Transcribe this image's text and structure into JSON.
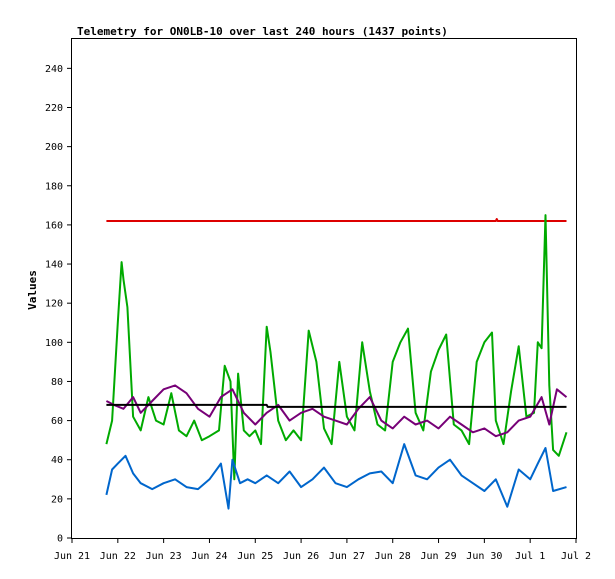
{
  "chart_data": {
    "type": "line",
    "title": "Telemetry for ON0LB-10 over last 240 hours (1437 points)",
    "xlabel": "",
    "ylabel": "Values",
    "ylim": [
      0,
      255
    ],
    "xlim": [
      "2024-06-21T00:00",
      "2024-07-02T00:00"
    ],
    "y_ticks": [
      0,
      20,
      40,
      60,
      80,
      100,
      120,
      140,
      160,
      180,
      200,
      220,
      240
    ],
    "x_tick_labels": [
      "Jun 21",
      "Jun 22",
      "Jun 23",
      "Jun 24",
      "Jun 25",
      "Jun 26",
      "Jun 27",
      "Jun 28",
      "Jun 29",
      "Jun 30",
      "Jul 1",
      "Jul 2"
    ],
    "grid": false,
    "legend": "none",
    "series": [
      {
        "color": "#dd0000",
        "x": [
          "2024-06-21T18:00",
          "2024-06-30T06:00",
          "2024-06-30T06:30",
          "2024-06-30T07:00",
          "2024-07-01T19:00"
        ],
        "y": [
          162,
          162,
          163,
          162,
          162
        ]
      },
      {
        "color": "#00aa00",
        "x": [
          "2024-06-21T18:00",
          "2024-06-21T21:00",
          "2024-06-22T00:00",
          "2024-06-22T02:00",
          "2024-06-22T03:00",
          "2024-06-22T05:00",
          "2024-06-22T08:00",
          "2024-06-22T12:00",
          "2024-06-22T16:00",
          "2024-06-22T20:00",
          "2024-06-23T00:00",
          "2024-06-23T04:00",
          "2024-06-23T08:00",
          "2024-06-23T12:00",
          "2024-06-23T16:00",
          "2024-06-23T20:00",
          "2024-06-24T00:00",
          "2024-06-24T05:00",
          "2024-06-24T08:00",
          "2024-06-24T11:00",
          "2024-06-24T13:00",
          "2024-06-24T15:00",
          "2024-06-24T18:00",
          "2024-06-24T21:00",
          "2024-06-25T00:00",
          "2024-06-25T03:00",
          "2024-06-25T06:00",
          "2024-06-25T08:00",
          "2024-06-25T12:00",
          "2024-06-25T16:00",
          "2024-06-25T20:00",
          "2024-06-26T00:00",
          "2024-06-26T04:00",
          "2024-06-26T08:00",
          "2024-06-26T12:00",
          "2024-06-26T16:00",
          "2024-06-26T20:00",
          "2024-06-27T00:00",
          "2024-06-27T04:00",
          "2024-06-27T08:00",
          "2024-06-27T12:00",
          "2024-06-27T16:00",
          "2024-06-27T20:00",
          "2024-06-28T00:00",
          "2024-06-28T04:00",
          "2024-06-28T08:00",
          "2024-06-28T12:00",
          "2024-06-28T16:00",
          "2024-06-28T20:00",
          "2024-06-29T00:00",
          "2024-06-29T04:00",
          "2024-06-29T08:00",
          "2024-06-29T12:00",
          "2024-06-29T16:00",
          "2024-06-29T20:00",
          "2024-06-30T00:00",
          "2024-06-30T04:00",
          "2024-06-30T06:00",
          "2024-06-30T10:00",
          "2024-06-30T14:00",
          "2024-06-30T18:00",
          "2024-06-30T22:00",
          "2024-07-01T02:00",
          "2024-07-01T04:00",
          "2024-07-01T06:00",
          "2024-07-01T08:00",
          "2024-07-01T10:00",
          "2024-07-01T12:00",
          "2024-07-01T15:00",
          "2024-07-01T19:00"
        ],
        "y": [
          48,
          60,
          110,
          141,
          132,
          118,
          62,
          55,
          72,
          60,
          58,
          74,
          55,
          52,
          60,
          50,
          52,
          55,
          88,
          80,
          30,
          84,
          55,
          52,
          55,
          48,
          108,
          95,
          60,
          50,
          55,
          50,
          106,
          90,
          56,
          48,
          90,
          62,
          55,
          100,
          75,
          58,
          55,
          90,
          100,
          107,
          64,
          55,
          85,
          96,
          104,
          58,
          55,
          48,
          90,
          100,
          105,
          60,
          48,
          75,
          98,
          62,
          64,
          100,
          97,
          165,
          78,
          45,
          42,
          54
        ]
      },
      {
        "color": "#770077",
        "x": [
          "2024-06-21T18:00",
          "2024-06-21T22:00",
          "2024-06-22T03:00",
          "2024-06-22T08:00",
          "2024-06-22T12:00",
          "2024-06-22T18:00",
          "2024-06-23T00:00",
          "2024-06-23T06:00",
          "2024-06-23T12:00",
          "2024-06-23T18:00",
          "2024-06-24T00:00",
          "2024-06-24T06:00",
          "2024-06-24T12:00",
          "2024-06-24T18:00",
          "2024-06-25T00:00",
          "2024-06-25T06:00",
          "2024-06-25T12:00",
          "2024-06-25T18:00",
          "2024-06-26T00:00",
          "2024-06-26T06:00",
          "2024-06-26T12:00",
          "2024-06-26T18:00",
          "2024-06-27T00:00",
          "2024-06-27T06:00",
          "2024-06-27T12:00",
          "2024-06-27T18:00",
          "2024-06-28T00:00",
          "2024-06-28T06:00",
          "2024-06-28T12:00",
          "2024-06-28T18:00",
          "2024-06-29T00:00",
          "2024-06-29T06:00",
          "2024-06-29T12:00",
          "2024-06-29T18:00",
          "2024-06-30T00:00",
          "2024-06-30T06:00",
          "2024-06-30T12:00",
          "2024-06-30T18:00",
          "2024-07-01T00:00",
          "2024-07-01T06:00",
          "2024-07-01T10:00",
          "2024-07-01T14:00",
          "2024-07-01T19:00"
        ],
        "y": [
          70,
          68,
          66,
          72,
          64,
          70,
          76,
          78,
          74,
          66,
          62,
          72,
          76,
          64,
          58,
          64,
          68,
          60,
          64,
          66,
          62,
          60,
          58,
          66,
          72,
          60,
          56,
          62,
          58,
          60,
          56,
          62,
          58,
          54,
          56,
          52,
          54,
          60,
          62,
          72,
          58,
          76,
          72
        ]
      },
      {
        "color": "#0066cc",
        "x": [
          "2024-06-21T18:00",
          "2024-06-21T21:00",
          "2024-06-22T00:00",
          "2024-06-22T04:00",
          "2024-06-22T08:00",
          "2024-06-22T12:00",
          "2024-06-22T18:00",
          "2024-06-23T00:00",
          "2024-06-23T06:00",
          "2024-06-23T12:00",
          "2024-06-23T18:00",
          "2024-06-24T00:00",
          "2024-06-24T06:00",
          "2024-06-24T10:00",
          "2024-06-24T12:00",
          "2024-06-24T16:00",
          "2024-06-24T20:00",
          "2024-06-25T00:00",
          "2024-06-25T06:00",
          "2024-06-25T12:00",
          "2024-06-25T18:00",
          "2024-06-26T00:00",
          "2024-06-26T06:00",
          "2024-06-26T12:00",
          "2024-06-26T18:00",
          "2024-06-27T00:00",
          "2024-06-27T06:00",
          "2024-06-27T12:00",
          "2024-06-27T18:00",
          "2024-06-28T00:00",
          "2024-06-28T06:00",
          "2024-06-28T12:00",
          "2024-06-28T18:00",
          "2024-06-29T00:00",
          "2024-06-29T06:00",
          "2024-06-29T12:00",
          "2024-06-29T18:00",
          "2024-06-30T00:00",
          "2024-06-30T06:00",
          "2024-06-30T12:00",
          "2024-06-30T18:00",
          "2024-07-01T00:00",
          "2024-07-01T04:00",
          "2024-07-01T08:00",
          "2024-07-01T12:00",
          "2024-07-01T19:00"
        ],
        "y": [
          22,
          35,
          38,
          42,
          33,
          28,
          25,
          28,
          30,
          26,
          25,
          30,
          38,
          15,
          40,
          28,
          30,
          28,
          32,
          28,
          34,
          26,
          30,
          36,
          28,
          26,
          30,
          33,
          34,
          28,
          48,
          32,
          30,
          36,
          40,
          32,
          28,
          24,
          30,
          16,
          35,
          30,
          38,
          46,
          24,
          26
        ]
      },
      {
        "color": "#000000",
        "x": [
          "2024-06-21T18:00",
          "2024-06-24T12:00",
          "2024-06-25T06:00",
          "2024-06-25T06:30",
          "2024-07-01T19:00"
        ],
        "y": [
          68,
          68,
          68,
          67,
          67
        ]
      }
    ]
  }
}
